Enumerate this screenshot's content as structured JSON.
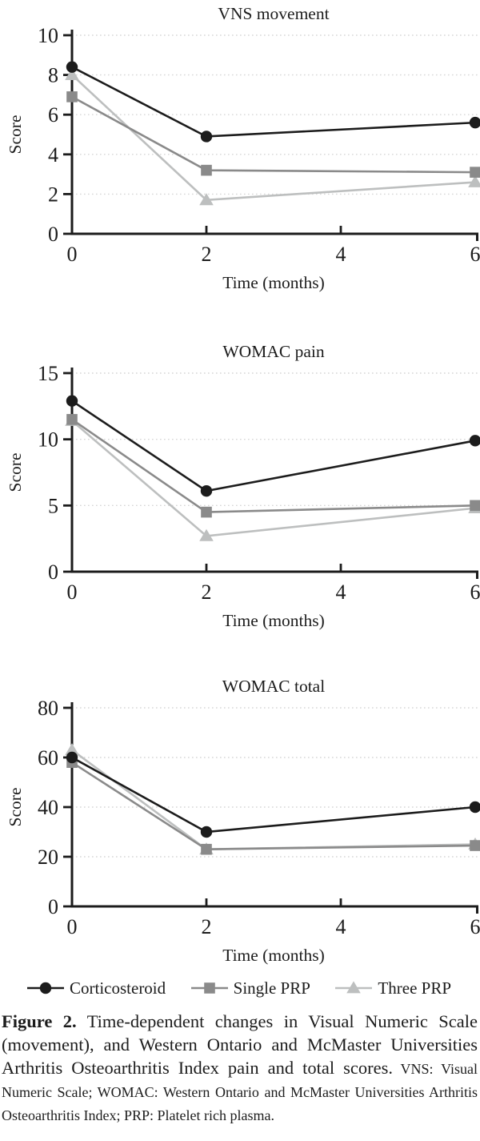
{
  "figure": {
    "legend": [
      {
        "label": "Corticosteroid",
        "marker": "circle",
        "color": "#1c1c1c"
      },
      {
        "label": "Single PRP",
        "marker": "square",
        "color": "#8a8a8a"
      },
      {
        "label": "Three PRP",
        "marker": "triangle",
        "color": "#bdbfbf"
      }
    ],
    "caption": {
      "label": "Figure 2.",
      "main": " Time-dependent changes in Visual Numeric Scale (movement), and Western Ontario and McMaster Universities Arthritis Osteoarthritis Index pain and total scores.",
      "abbreviations": " VNS: Visual Numeric Scale; WOMAC: Western Ontario and McMaster Universities Arthritis Osteoarthritis Index; PRP: Platelet rich plasma."
    },
    "colors": {
      "axis": "#1c1c1c",
      "gridline": "#d6d6d6",
      "corticosteroid": "#1c1c1c",
      "single_prp": "#8a8a8a",
      "three_prp": "#bdbfbf"
    }
  },
  "chart_data": [
    {
      "type": "line",
      "title": "VNS movement",
      "xlabel": "Time (months)",
      "ylabel": "Score",
      "x": [
        0,
        2,
        6
      ],
      "xticks": [
        0,
        2,
        4,
        6
      ],
      "xlim": [
        0,
        6
      ],
      "ylim": [
        0,
        10
      ],
      "yticks": [
        0,
        2,
        4,
        6,
        8,
        10
      ],
      "grid": "dotted-horizontal",
      "series": [
        {
          "name": "Corticosteroid",
          "marker": "circle",
          "color": "#1c1c1c",
          "values": [
            8.4,
            4.9,
            5.6
          ]
        },
        {
          "name": "Single PRP",
          "marker": "square",
          "color": "#8a8a8a",
          "values": [
            6.9,
            3.2,
            3.1
          ]
        },
        {
          "name": "Three PRP",
          "marker": "triangle",
          "color": "#bdbfbf",
          "values": [
            8.0,
            1.7,
            2.6
          ]
        }
      ]
    },
    {
      "type": "line",
      "title": "WOMAC pain",
      "xlabel": "Time (months)",
      "ylabel": "Score",
      "x": [
        0,
        2,
        6
      ],
      "xticks": [
        0,
        2,
        4,
        6
      ],
      "xlim": [
        0,
        6
      ],
      "ylim": [
        0,
        15
      ],
      "yticks": [
        0,
        5,
        10,
        15
      ],
      "grid": "dotted-horizontal",
      "series": [
        {
          "name": "Corticosteroid",
          "marker": "circle",
          "color": "#1c1c1c",
          "values": [
            12.9,
            6.1,
            9.9
          ]
        },
        {
          "name": "Single PRP",
          "marker": "square",
          "color": "#8a8a8a",
          "values": [
            11.5,
            4.5,
            5.0
          ]
        },
        {
          "name": "Three PRP",
          "marker": "triangle",
          "color": "#bdbfbf",
          "values": [
            11.4,
            2.7,
            4.8
          ]
        }
      ]
    },
    {
      "type": "line",
      "title": "WOMAC total",
      "xlabel": "Time (months)",
      "ylabel": "Score",
      "x": [
        0,
        2,
        6
      ],
      "xticks": [
        0,
        2,
        4,
        6
      ],
      "xlim": [
        0,
        6
      ],
      "ylim": [
        0,
        80
      ],
      "yticks": [
        0,
        20,
        40,
        60,
        80
      ],
      "grid": "dotted-horizontal",
      "series": [
        {
          "name": "Corticosteroid",
          "marker": "circle",
          "color": "#1c1c1c",
          "values": [
            60,
            30,
            40
          ]
        },
        {
          "name": "Single PRP",
          "marker": "square",
          "color": "#8a8a8a",
          "values": [
            58,
            23,
            24.5
          ]
        },
        {
          "name": "Three PRP",
          "marker": "triangle",
          "color": "#bdbfbf",
          "values": [
            63,
            23,
            25
          ]
        }
      ]
    }
  ]
}
